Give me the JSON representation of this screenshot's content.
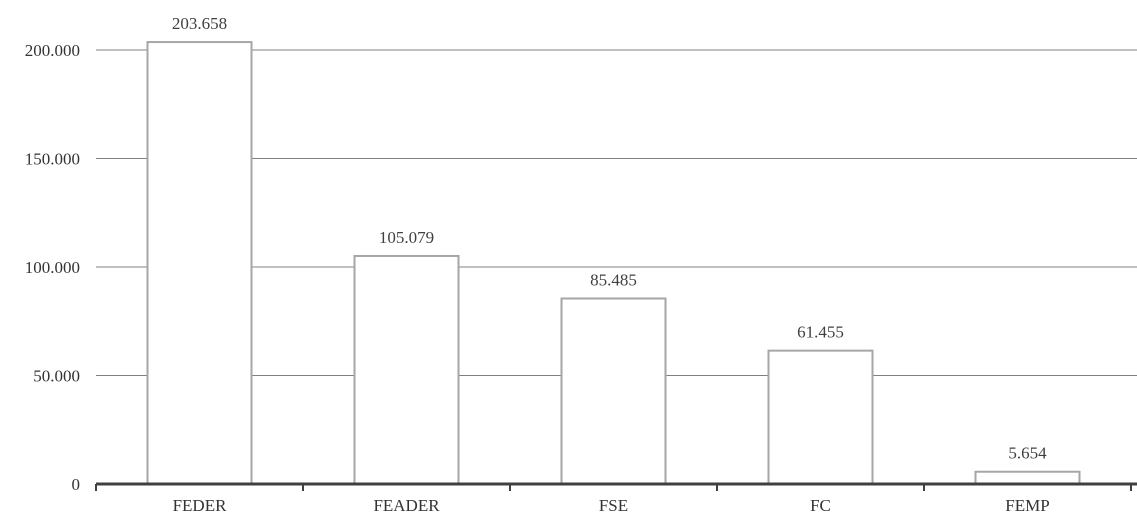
{
  "chart_data": {
    "type": "bar",
    "categories": [
      "FEDER",
      "FEADER",
      "FSE",
      "FC",
      "FEMP"
    ],
    "values": [
      203658,
      105079,
      85485,
      61455,
      5654
    ],
    "value_labels": [
      "203.658",
      "105.079",
      "85.485",
      "61.455",
      "5.654"
    ],
    "y_ticks": [
      0,
      50000,
      100000,
      150000,
      200000
    ],
    "y_tick_labels": [
      "0",
      "50.000",
      "100.000",
      "150.000",
      "200.000"
    ],
    "ylim": [
      0,
      200000
    ],
    "grid": true,
    "legend": "none",
    "colors": {
      "bar_fill": "#ffffff",
      "bar_stroke": "#a6a6a6",
      "grid": "#808080",
      "axis": "#404040"
    }
  }
}
